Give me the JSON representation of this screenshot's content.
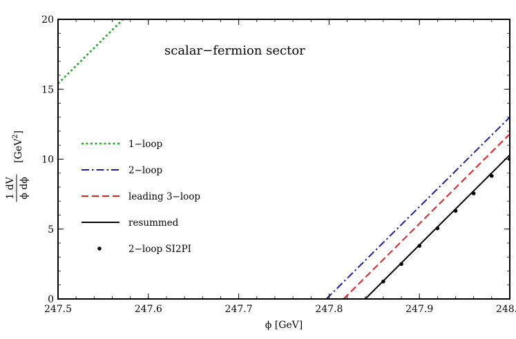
{
  "chart_data": {
    "type": "line",
    "title": "",
    "annotation": "scalar−fermion sector",
    "xlabel": "ϕ [GeV]",
    "ylabel": {
      "numerator": "1  dV",
      "denominator": "ϕ  dϕ",
      "unit_prefix": "[GeV",
      "unit_power": "2",
      "unit_suffix": "]"
    },
    "xlim": [
      247.5,
      248.0
    ],
    "ylim": [
      0,
      20
    ],
    "x_ticks": [
      {
        "value": 247.5,
        "label": "247.5"
      },
      {
        "value": 247.6,
        "label": "247.6"
      },
      {
        "value": 247.7,
        "label": "247.7"
      },
      {
        "value": 247.8,
        "label": "247.8"
      },
      {
        "value": 247.9,
        "label": "247.9"
      },
      {
        "value": 248.0,
        "label": "248.0"
      }
    ],
    "y_ticks": [
      {
        "value": 0,
        "label": "0"
      },
      {
        "value": 5,
        "label": "5"
      },
      {
        "value": 10,
        "label": "10"
      },
      {
        "value": 15,
        "label": "15"
      },
      {
        "value": 20,
        "label": "20"
      }
    ],
    "grid": false,
    "legend_position": "left-middle",
    "series": [
      {
        "name": "1−loop",
        "style": "dotted",
        "color": "#1faa1f",
        "x": [
          247.5,
          247.572
        ],
        "y": [
          15.4,
          20.0
        ]
      },
      {
        "name": "2−loop",
        "style": "dashdot",
        "color": "#1a1aaa",
        "x": [
          247.797,
          248.0
        ],
        "y": [
          0.0,
          13.0
        ]
      },
      {
        "name": "leading 3−loop",
        "style": "dashed",
        "color": "#e81c1c",
        "x": [
          247.816,
          248.0
        ],
        "y": [
          0.0,
          11.8
        ]
      },
      {
        "name": "resummed",
        "style": "solid",
        "color": "#000000",
        "x": [
          247.84,
          248.0
        ],
        "y": [
          0.0,
          10.3
        ]
      },
      {
        "name": "2−loop SI2PI",
        "style": "points",
        "color": "#000000",
        "x": [
          247.86,
          247.88,
          247.9,
          247.92,
          247.94,
          247.96,
          247.98,
          248.0
        ],
        "y": [
          1.25,
          2.5,
          3.8,
          5.05,
          6.3,
          7.55,
          8.8,
          10.0
        ]
      }
    ]
  }
}
